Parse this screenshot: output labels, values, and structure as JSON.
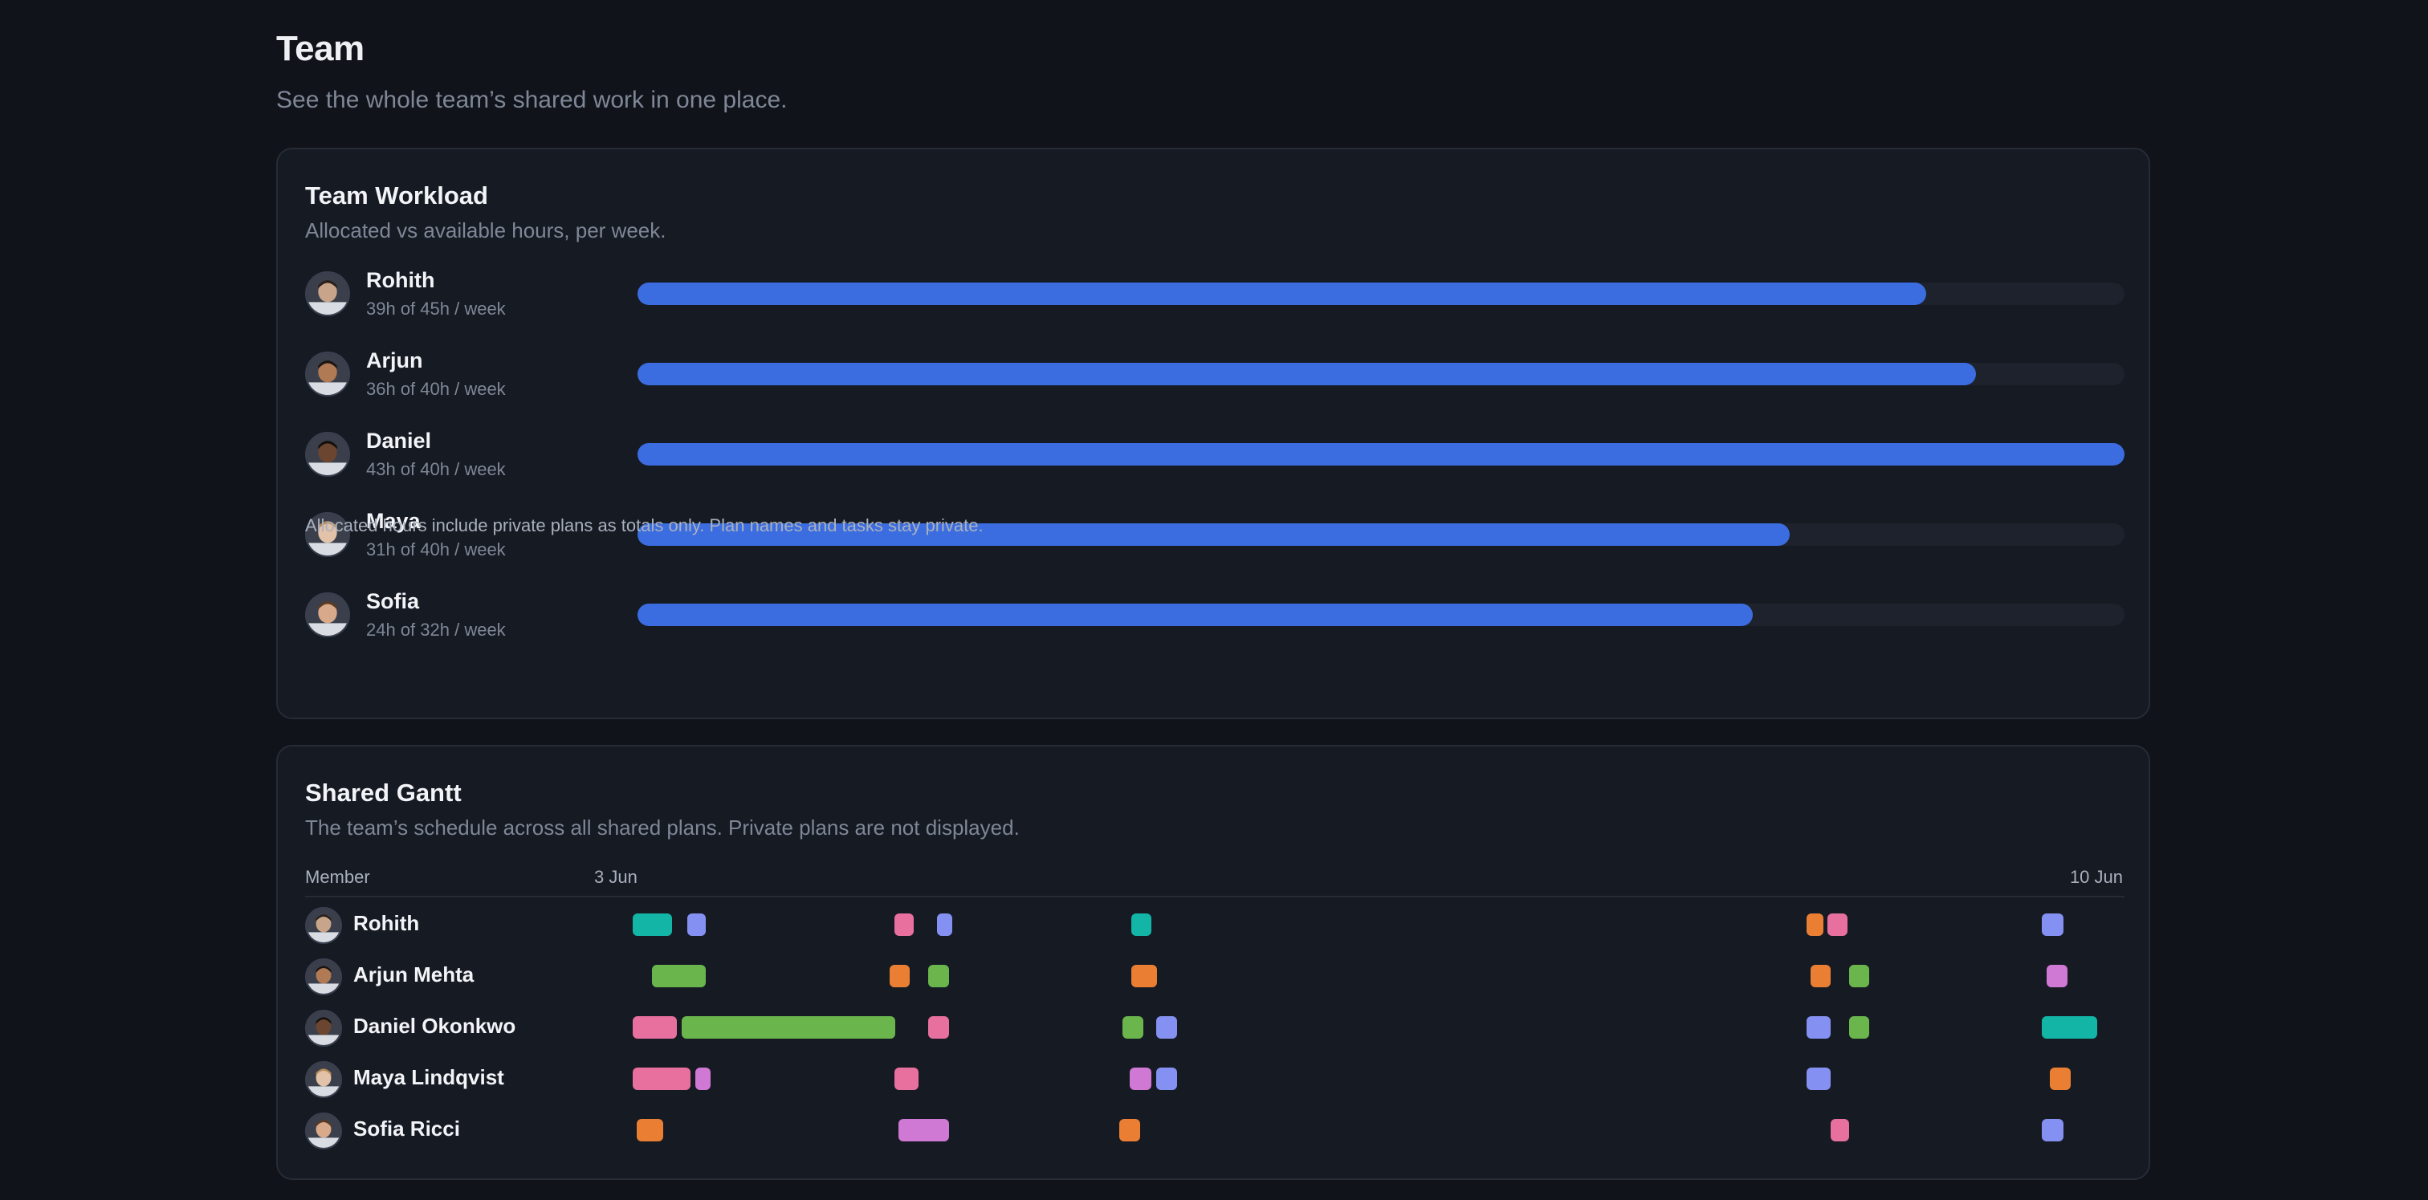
{
  "page": {
    "title": "Team",
    "subtitle": "See the whole team’s shared work in one place."
  },
  "workload": {
    "title": "Team Workload",
    "subtitle": "Allocated vs available hours, per week.",
    "footnote": "Allocated hours include private plans as totals only. Plan names and tasks stay private.",
    "members": [
      {
        "name": "Rohith",
        "hours_label": "39h of 45h / week",
        "allocated": 39,
        "available": 45,
        "avatar": "avatar-icon"
      },
      {
        "name": "Arjun",
        "hours_label": "36h of 40h / week",
        "allocated": 36,
        "available": 40,
        "avatar": "avatar-icon"
      },
      {
        "name": "Daniel",
        "hours_label": "43h of 40h / week",
        "allocated": 43,
        "available": 40,
        "avatar": "avatar-icon"
      },
      {
        "name": "Maya",
        "hours_label": "31h of 40h / week",
        "allocated": 31,
        "available": 40,
        "avatar": "avatar-icon"
      },
      {
        "name": "Sofia",
        "hours_label": "24h of 32h / week",
        "allocated": 24,
        "available": 32,
        "avatar": "avatar-icon"
      }
    ]
  },
  "gantt": {
    "title": "Shared Gantt",
    "subtitle": "The team’s schedule across all shared plans. Private plans are not displayed.",
    "member_header": "Member",
    "start_label": "3 Jun",
    "end_label": "10 Jun",
    "colors": {
      "teal": "#12b5a6",
      "blue": "#8591f2",
      "pink": "#e8709f",
      "orange": "#ea7f34",
      "green": "#6bb54d",
      "violet": "#cf78d4"
    },
    "rows": [
      {
        "name": "Rohith",
        "bars": [
          {
            "start": 0.025,
            "end": 0.051,
            "color": "teal"
          },
          {
            "start": 0.061,
            "end": 0.073,
            "color": "blue"
          },
          {
            "start": 0.196,
            "end": 0.209,
            "color": "pink"
          },
          {
            "start": 0.224,
            "end": 0.234,
            "color": "blue"
          },
          {
            "start": 0.351,
            "end": 0.364,
            "color": "teal"
          },
          {
            "start": 0.792,
            "end": 0.803,
            "color": "orange"
          },
          {
            "start": 0.806,
            "end": 0.819,
            "color": "pink"
          },
          {
            "start": 0.946,
            "end": 0.96,
            "color": "blue"
          }
        ]
      },
      {
        "name": "Arjun Mehta",
        "bars": [
          {
            "start": 0.038,
            "end": 0.073,
            "color": "green"
          },
          {
            "start": 0.193,
            "end": 0.206,
            "color": "orange"
          },
          {
            "start": 0.218,
            "end": 0.232,
            "color": "green"
          },
          {
            "start": 0.351,
            "end": 0.368,
            "color": "orange"
          },
          {
            "start": 0.795,
            "end": 0.808,
            "color": "orange"
          },
          {
            "start": 0.82,
            "end": 0.833,
            "color": "green"
          },
          {
            "start": 0.949,
            "end": 0.963,
            "color": "violet"
          }
        ]
      },
      {
        "name": "Daniel Okonkwo",
        "bars": [
          {
            "start": 0.025,
            "end": 0.054,
            "color": "pink"
          },
          {
            "start": 0.057,
            "end": 0.197,
            "color": "green"
          },
          {
            "start": 0.218,
            "end": 0.232,
            "color": "pink"
          },
          {
            "start": 0.345,
            "end": 0.359,
            "color": "green"
          },
          {
            "start": 0.367,
            "end": 0.381,
            "color": "blue"
          },
          {
            "start": 0.792,
            "end": 0.808,
            "color": "blue"
          },
          {
            "start": 0.82,
            "end": 0.833,
            "color": "green"
          },
          {
            "start": 0.946,
            "end": 0.982,
            "color": "teal"
          }
        ]
      },
      {
        "name": "Maya Lindqvist",
        "bars": [
          {
            "start": 0.025,
            "end": 0.063,
            "color": "pink"
          },
          {
            "start": 0.066,
            "end": 0.076,
            "color": "violet"
          },
          {
            "start": 0.196,
            "end": 0.212,
            "color": "pink"
          },
          {
            "start": 0.35,
            "end": 0.364,
            "color": "violet"
          },
          {
            "start": 0.367,
            "end": 0.381,
            "color": "blue"
          },
          {
            "start": 0.792,
            "end": 0.808,
            "color": "blue"
          },
          {
            "start": 0.951,
            "end": 0.965,
            "color": "orange"
          }
        ]
      },
      {
        "name": "Sofia Ricci",
        "bars": [
          {
            "start": 0.028,
            "end": 0.045,
            "color": "orange"
          },
          {
            "start": 0.199,
            "end": 0.232,
            "color": "violet"
          },
          {
            "start": 0.343,
            "end": 0.357,
            "color": "orange"
          },
          {
            "start": 0.808,
            "end": 0.82,
            "color": "pink"
          },
          {
            "start": 0.946,
            "end": 0.96,
            "color": "blue"
          }
        ]
      }
    ]
  }
}
